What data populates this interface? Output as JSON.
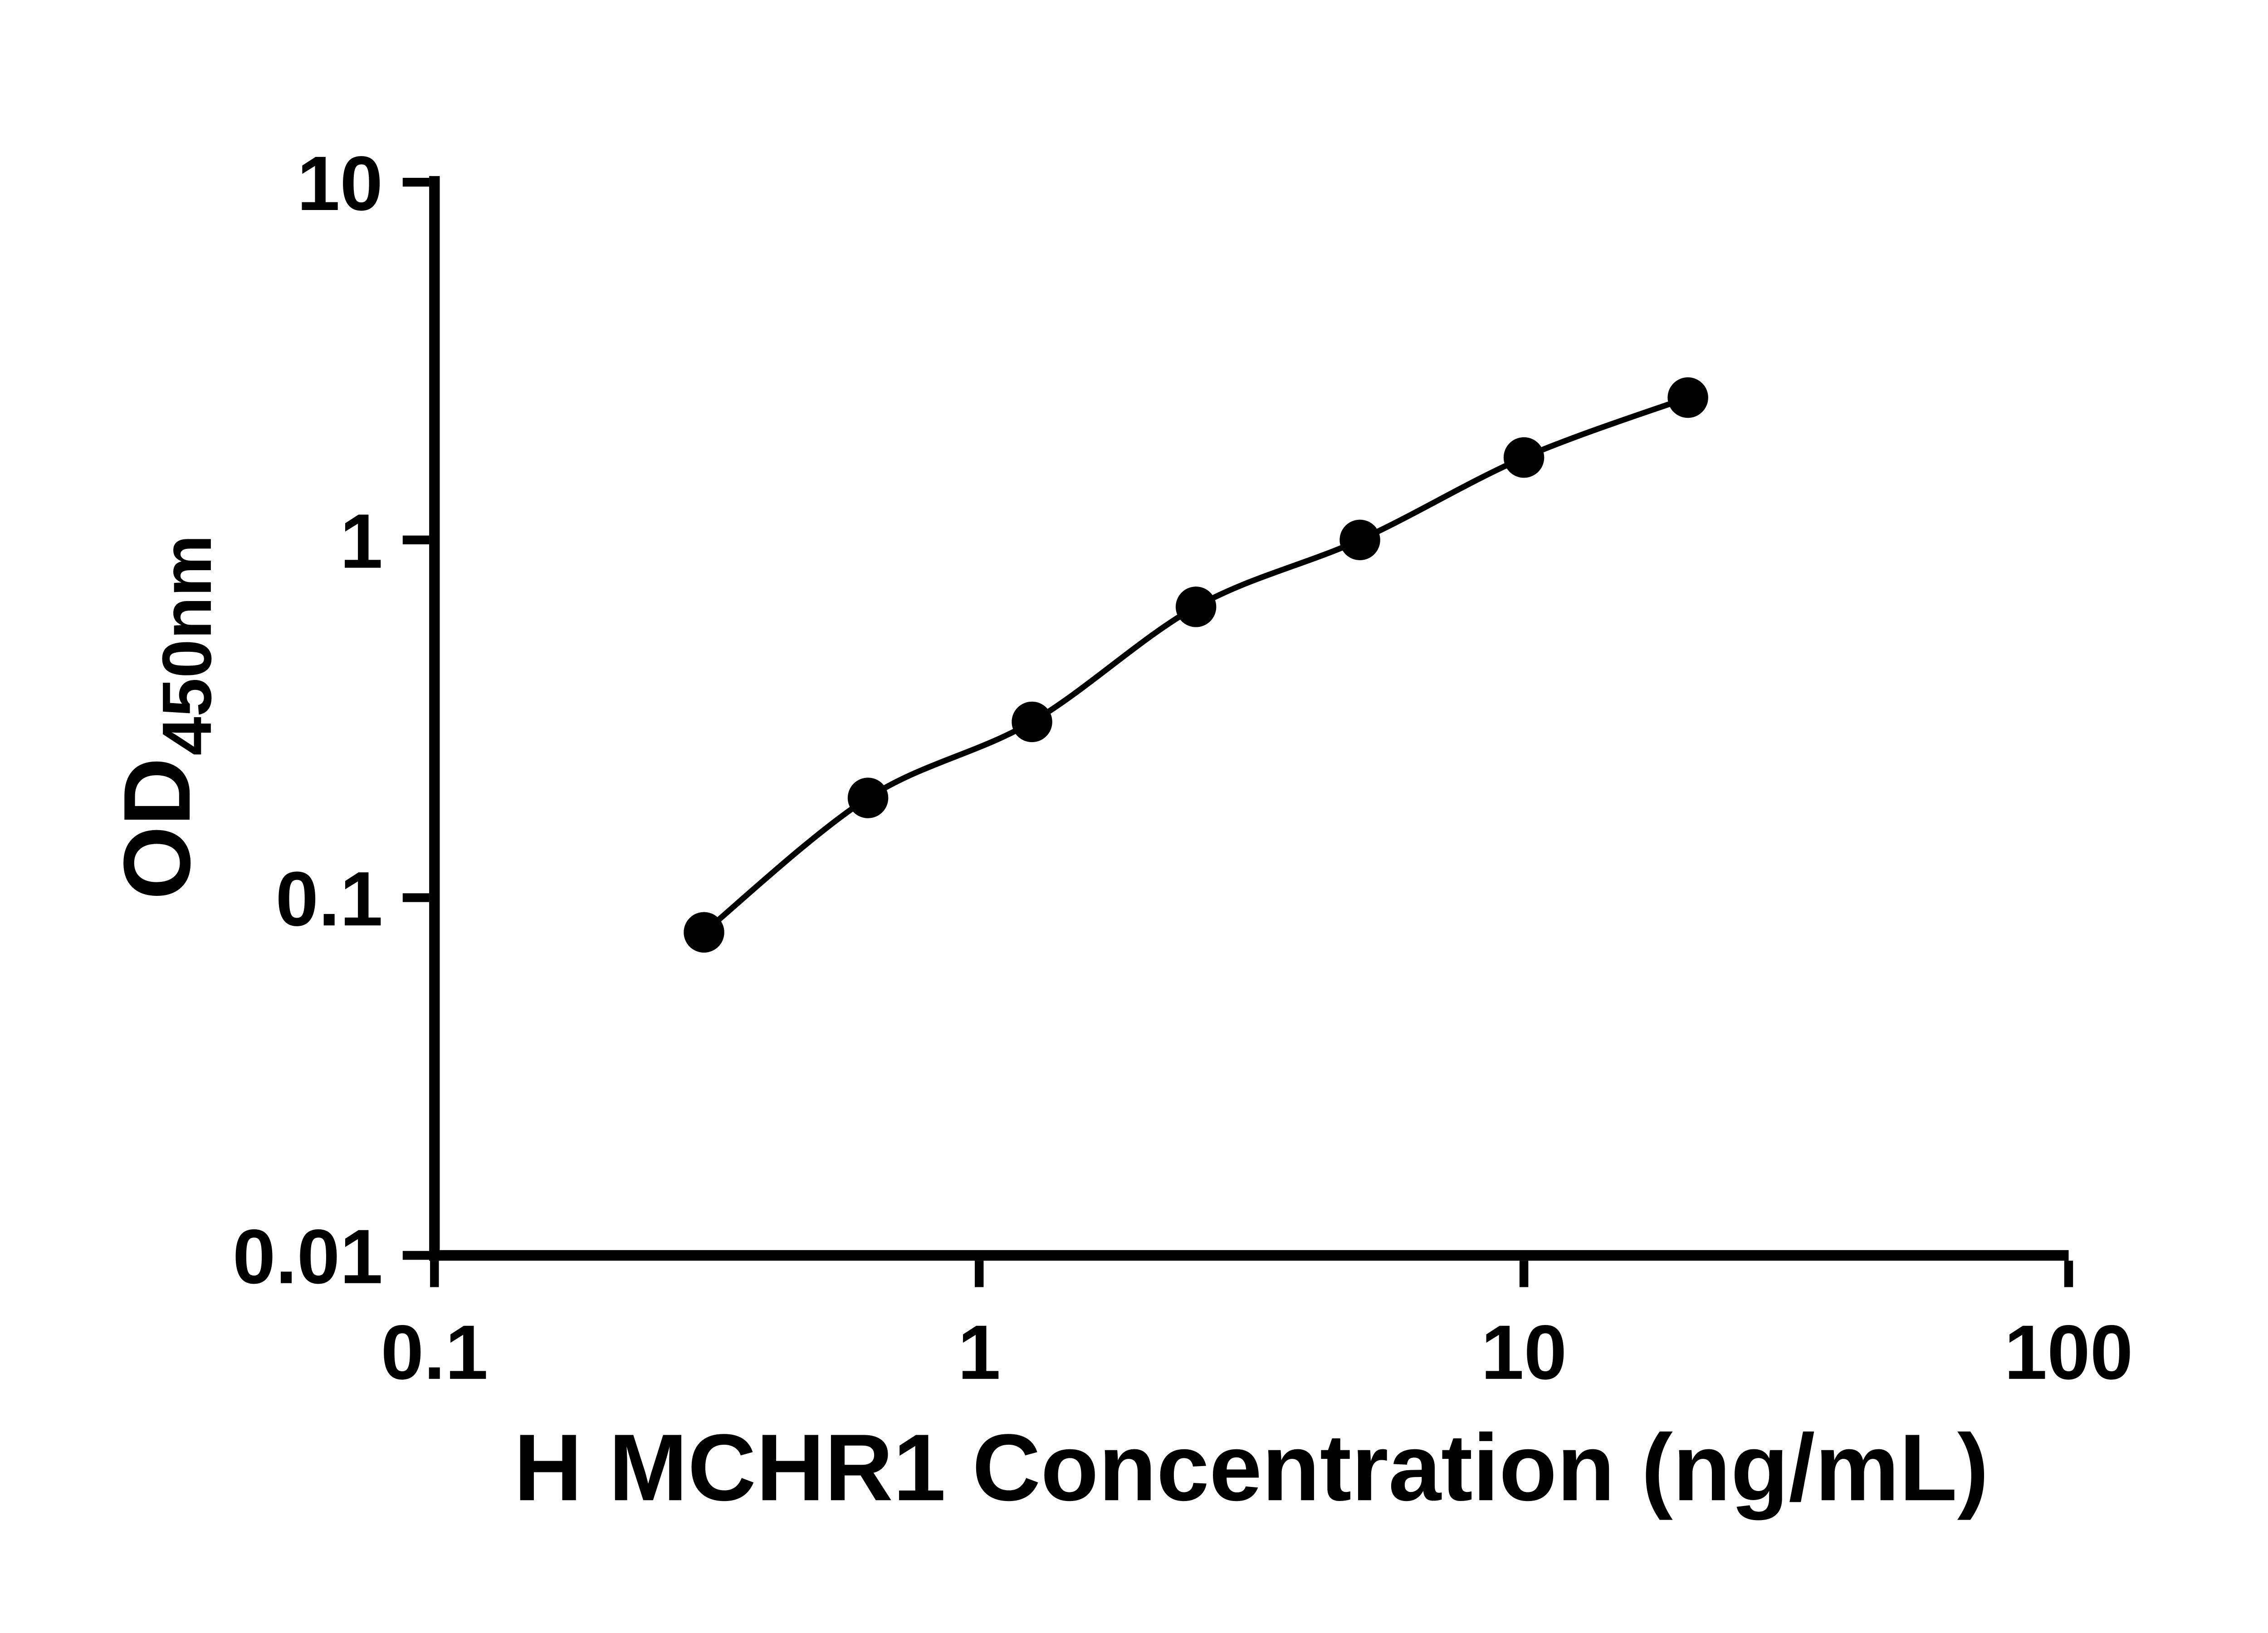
{
  "chart_data": {
    "type": "scatter",
    "line": true,
    "title": "",
    "xlabel": "H MCHR1 Concentration (ng/mL)",
    "ylabel_main": "OD",
    "ylabel_sub": "450nm",
    "x_scale": "log",
    "y_scale": "log",
    "xlim": [
      0.1,
      100
    ],
    "ylim": [
      0.01,
      10
    ],
    "grid": false,
    "legend": "none",
    "x": [
      0.3125,
      0.625,
      1.25,
      2.5,
      5,
      10,
      20
    ],
    "y": [
      0.08,
      0.19,
      0.31,
      0.65,
      1.0,
      1.7,
      2.5
    ],
    "x_ticks": [
      {
        "value": 0.1,
        "label": "0.1"
      },
      {
        "value": 1,
        "label": "1"
      },
      {
        "value": 10,
        "label": "10"
      },
      {
        "value": 100,
        "label": "100"
      }
    ],
    "y_ticks": [
      {
        "value": 0.01,
        "label": "0.01"
      },
      {
        "value": 0.1,
        "label": "0.1"
      },
      {
        "value": 1,
        "label": "1"
      },
      {
        "value": 10,
        "label": "10"
      }
    ],
    "axis_color": "#000000",
    "line_color": "#000000",
    "marker_color": "#000000",
    "background": "#ffffff"
  }
}
